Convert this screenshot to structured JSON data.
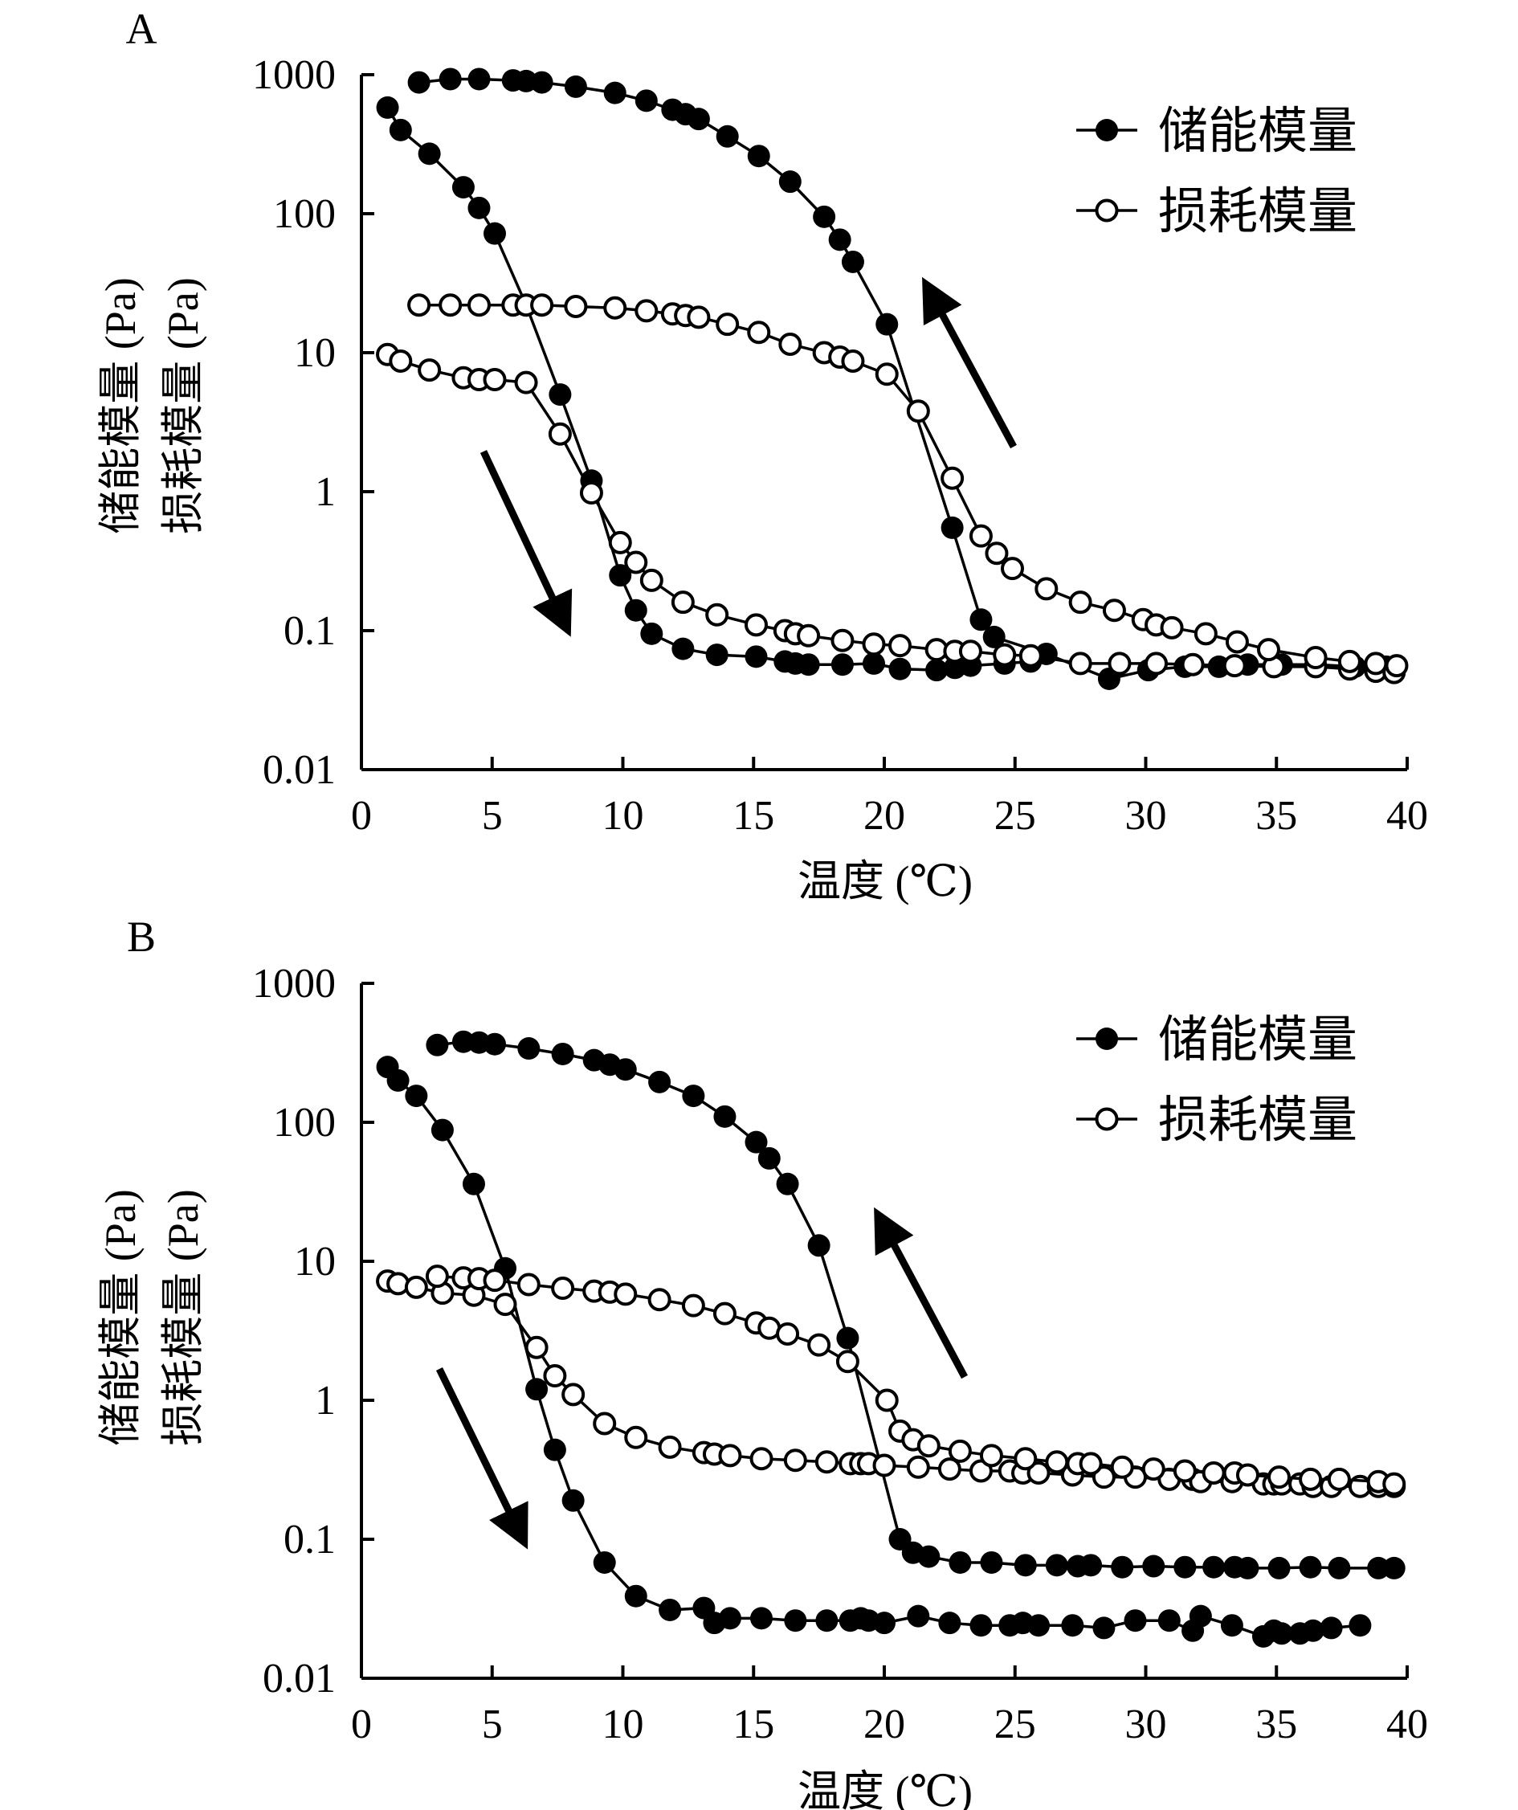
{
  "chart_data": [
    {
      "type": "scatter",
      "panel_label": "A",
      "title": "",
      "xlabel": "温度 (℃)",
      "ylabel": [
        "储能模量 (Pa)",
        "损耗模量 (Pa)"
      ],
      "x_range": [
        0,
        40
      ],
      "y_range": [
        0.01,
        1000
      ],
      "y_scale": "log",
      "x_ticks": [
        "0",
        "5",
        "10",
        "15",
        "20",
        "25",
        "30",
        "35",
        "40"
      ],
      "y_ticks": [
        "0.01",
        "0.1",
        "1",
        "10",
        "100",
        "1000"
      ],
      "grid": false,
      "legend_position": "top-right",
      "legend": [
        {
          "label": "储能模量",
          "marker": "filled-circle"
        },
        {
          "label": "损耗模量",
          "marker": "open-circle"
        }
      ],
      "annotations": [
        {
          "type": "arrow",
          "direction": "down",
          "meaning": "cooling"
        },
        {
          "type": "arrow",
          "direction": "up",
          "meaning": "heating"
        }
      ],
      "series": [
        {
          "name": "储能模量",
          "marker": "filled",
          "segment": "cooling",
          "x": [
            1,
            1.5,
            2.6,
            3.9,
            4.5,
            5.1,
            6.3,
            7.6,
            8.8,
            9.9,
            10.5,
            11.1,
            12.3,
            13.6,
            15.1,
            16.2,
            16.6,
            17.1,
            18.4,
            19.6,
            20.6,
            22.0,
            22.7,
            23.3,
            24.6,
            25.6
          ],
          "y": [
            580,
            400,
            270,
            155,
            110,
            72,
            22,
            5.0,
            1.2,
            0.25,
            0.14,
            0.095,
            0.074,
            0.067,
            0.065,
            0.06,
            0.058,
            0.057,
            0.057,
            0.058,
            0.053,
            0.052,
            0.054,
            0.056,
            0.058,
            0.06
          ]
        },
        {
          "name": "储能模量",
          "marker": "filled",
          "segment": "heating",
          "x": [
            2.2,
            3.4,
            4.5,
            5.8,
            6.3,
            6.9,
            8.2,
            9.7,
            10.9,
            11.9,
            12.4,
            12.9,
            14.0,
            15.2,
            16.4,
            17.7,
            18.3,
            18.8,
            20.1,
            22.6,
            23.7,
            24.2,
            26.2,
            28.6,
            30.1,
            31.5,
            32.8,
            33.9,
            35.2,
            36.5,
            38.0,
            39.2
          ],
          "y": [
            880,
            930,
            930,
            910,
            900,
            880,
            820,
            740,
            650,
            560,
            520,
            480,
            360,
            260,
            170,
            95,
            65,
            45,
            16,
            0.55,
            0.12,
            0.09,
            0.068,
            0.045,
            0.052,
            0.055,
            0.055,
            0.057,
            0.057,
            0.057,
            0.055,
            0.055
          ]
        },
        {
          "name": "损耗模量",
          "marker": "open",
          "segment": "cooling",
          "x": [
            1,
            1.5,
            2.6,
            3.9,
            4.5,
            5.1,
            6.3,
            7.6,
            8.8,
            9.9,
            10.5,
            11.1,
            12.3,
            13.6,
            15.1,
            16.2,
            16.6,
            17.1,
            18.4,
            19.6,
            20.6,
            22.0,
            22.7,
            23.3,
            24.6,
            25.6,
            27.5,
            29.0,
            30.4,
            31.8,
            33.4,
            34.9,
            36.5,
            37.8,
            38.8,
            39.5
          ],
          "y": [
            9.7,
            8.7,
            7.5,
            6.6,
            6.4,
            6.4,
            6.1,
            2.6,
            0.98,
            0.43,
            0.31,
            0.23,
            0.16,
            0.13,
            0.11,
            0.1,
            0.095,
            0.092,
            0.085,
            0.08,
            0.078,
            0.073,
            0.071,
            0.071,
            0.067,
            0.066,
            0.058,
            0.058,
            0.058,
            0.057,
            0.056,
            0.055,
            0.055,
            0.053,
            0.051,
            0.05
          ]
        },
        {
          "name": "损耗模量",
          "marker": "open",
          "segment": "heating",
          "x": [
            2.2,
            3.4,
            4.5,
            5.8,
            6.3,
            6.9,
            8.2,
            9.7,
            10.9,
            11.9,
            12.4,
            12.9,
            14.0,
            15.2,
            16.4,
            17.7,
            18.3,
            18.8,
            20.1,
            21.3,
            22.6,
            23.7,
            24.3,
            24.9,
            26.2,
            27.5,
            28.8,
            29.9,
            30.4,
            31.0,
            32.3,
            33.5,
            34.7,
            36.5,
            37.8,
            38.8,
            39.6
          ],
          "y": [
            22,
            22,
            22,
            22,
            22,
            22,
            21.5,
            21,
            20,
            19,
            18.5,
            18,
            16,
            14,
            11.5,
            10,
            9.3,
            8.7,
            7,
            3.8,
            1.25,
            0.48,
            0.36,
            0.28,
            0.2,
            0.16,
            0.14,
            0.12,
            0.11,
            0.105,
            0.095,
            0.083,
            0.073,
            0.064,
            0.06,
            0.058,
            0.056
          ]
        }
      ]
    },
    {
      "type": "scatter",
      "panel_label": "B",
      "title": "",
      "xlabel": "温度 (℃)",
      "ylabel": [
        "储能模量 (Pa)",
        "损耗模量 (Pa)"
      ],
      "x_range": [
        0,
        40
      ],
      "y_range": [
        0.01,
        1000
      ],
      "y_scale": "log",
      "x_ticks": [
        "0",
        "5",
        "10",
        "15",
        "20",
        "25",
        "30",
        "35",
        "40"
      ],
      "y_ticks": [
        "0.01",
        "0.1",
        "1",
        "10",
        "100",
        "1000"
      ],
      "grid": false,
      "legend_position": "top-right",
      "legend": [
        {
          "label": "储能模量",
          "marker": "filled-circle"
        },
        {
          "label": "损耗模量",
          "marker": "open-circle"
        }
      ],
      "annotations": [
        {
          "type": "arrow",
          "direction": "down",
          "meaning": "cooling"
        },
        {
          "type": "arrow",
          "direction": "up",
          "meaning": "heating"
        }
      ],
      "series": [
        {
          "name": "储能模量",
          "marker": "filled",
          "segment": "cooling",
          "x": [
            1,
            1.4,
            2.1,
            3.1,
            4.3,
            5.5,
            6.7,
            7.4,
            8.1,
            9.3,
            10.5,
            11.8,
            13.1,
            13.5,
            14.1,
            15.3,
            16.6,
            17.8,
            18.7,
            19.1,
            19.4,
            20.0,
            21.3,
            22.5,
            23.7,
            24.8,
            25.3,
            25.9,
            27.2,
            28.4,
            29.6,
            30.9,
            31.8,
            32.1,
            33.3,
            34.5,
            34.9,
            35.2,
            35.9,
            36.4,
            37.1,
            38.2
          ],
          "y": [
            250,
            200,
            155,
            88,
            36,
            8.9,
            1.2,
            0.44,
            0.19,
            0.068,
            0.039,
            0.031,
            0.032,
            0.025,
            0.027,
            0.027,
            0.026,
            0.026,
            0.026,
            0.027,
            0.026,
            0.025,
            0.028,
            0.025,
            0.024,
            0.024,
            0.025,
            0.024,
            0.024,
            0.023,
            0.026,
            0.026,
            0.022,
            0.028,
            0.024,
            0.02,
            0.022,
            0.021,
            0.021,
            0.022,
            0.023,
            0.024
          ]
        },
        {
          "name": "储能模量",
          "marker": "filled",
          "segment": "heating",
          "x": [
            2.9,
            3.9,
            4.5,
            5.1,
            6.4,
            7.7,
            8.9,
            9.5,
            10.1,
            11.4,
            12.7,
            13.9,
            15.1,
            15.6,
            16.3,
            17.5,
            18.6,
            20.6,
            21.1,
            21.7,
            22.9,
            24.1,
            25.4,
            26.6,
            27.4,
            27.9,
            29.1,
            30.3,
            31.5,
            32.6,
            33.4,
            33.9,
            35.1,
            36.3,
            37.4,
            38.9,
            39.5
          ],
          "y": [
            360,
            380,
            375,
            365,
            340,
            310,
            280,
            260,
            240,
            195,
            155,
            110,
            72,
            55,
            36,
            13,
            2.8,
            0.1,
            0.08,
            0.075,
            0.068,
            0.068,
            0.065,
            0.065,
            0.064,
            0.065,
            0.063,
            0.064,
            0.063,
            0.063,
            0.063,
            0.062,
            0.062,
            0.063,
            0.062,
            0.062,
            0.062
          ]
        },
        {
          "name": "损耗模量",
          "marker": "open",
          "segment": "cooling",
          "x": [
            1,
            1.4,
            2.1,
            3.1,
            4.3,
            5.5,
            6.7,
            7.4,
            8.1,
            9.3,
            10.5,
            11.8,
            13.1,
            13.5,
            14.1,
            15.3,
            16.6,
            17.8,
            18.7,
            19.1,
            19.4,
            20.0,
            21.3,
            22.5,
            23.7,
            24.8,
            25.3,
            25.9,
            27.2,
            28.4,
            29.6,
            30.9,
            31.8,
            32.1,
            33.3,
            34.5,
            34.9,
            35.2,
            35.9,
            36.4,
            37.1,
            38.2,
            38.9,
            39.5
          ],
          "y": [
            7.2,
            6.9,
            6.5,
            5.9,
            5.7,
            4.9,
            2.4,
            1.5,
            1.1,
            0.68,
            0.54,
            0.46,
            0.42,
            0.41,
            0.4,
            0.38,
            0.37,
            0.36,
            0.35,
            0.35,
            0.35,
            0.34,
            0.33,
            0.32,
            0.31,
            0.31,
            0.3,
            0.3,
            0.29,
            0.28,
            0.28,
            0.27,
            0.27,
            0.26,
            0.26,
            0.25,
            0.25,
            0.25,
            0.25,
            0.24,
            0.24,
            0.24,
            0.24,
            0.24
          ]
        },
        {
          "name": "损耗模量",
          "marker": "open",
          "segment": "heating",
          "x": [
            2.9,
            3.9,
            4.5,
            5.1,
            6.4,
            7.7,
            8.9,
            9.5,
            10.1,
            11.4,
            12.7,
            13.9,
            15.1,
            15.6,
            16.3,
            17.5,
            18.6,
            20.1,
            20.6,
            21.1,
            21.7,
            22.9,
            24.1,
            25.4,
            26.6,
            27.4,
            27.9,
            29.1,
            30.3,
            31.5,
            32.6,
            33.4,
            33.9,
            35.1,
            36.3,
            37.4,
            38.9,
            39.5
          ],
          "y": [
            7.8,
            7.6,
            7.5,
            7.3,
            6.8,
            6.4,
            6.1,
            6.0,
            5.8,
            5.3,
            4.8,
            4.2,
            3.6,
            3.3,
            3.0,
            2.5,
            1.9,
            1.0,
            0.6,
            0.52,
            0.47,
            0.43,
            0.4,
            0.38,
            0.36,
            0.35,
            0.35,
            0.33,
            0.32,
            0.31,
            0.3,
            0.3,
            0.29,
            0.28,
            0.27,
            0.27,
            0.26,
            0.25
          ]
        }
      ]
    }
  ]
}
